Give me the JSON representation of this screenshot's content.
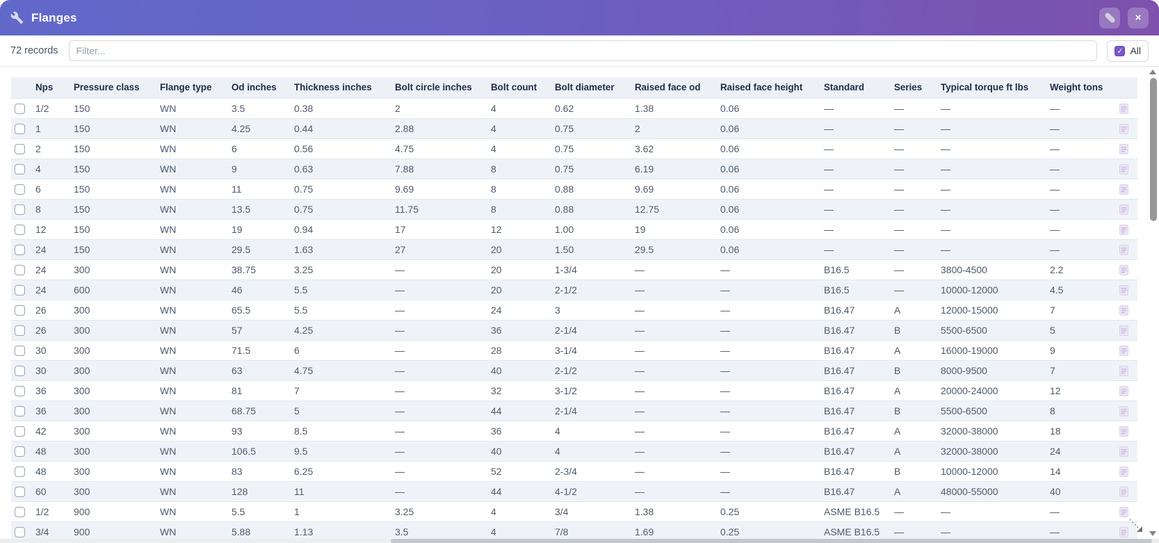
{
  "window": {
    "title": "Flanges",
    "icon": "wrench-icon",
    "edit_button": "pencil",
    "close_button": "×"
  },
  "toolbar": {
    "records_count": "72 records",
    "filter_placeholder": "Filter...",
    "select_all": {
      "label": "All",
      "checked": true
    }
  },
  "table": {
    "columns": [
      "Nps",
      "Pressure class",
      "Flange type",
      "Od inches",
      "Thickness inches",
      "Bolt circle inches",
      "Bolt count",
      "Bolt diameter",
      "Raised face od",
      "Raised face height",
      "Standard",
      "Series",
      "Typical torque ft lbs",
      "Weight tons"
    ],
    "rows": [
      [
        "1/2",
        "150",
        "WN",
        "3.5",
        "0.38",
        "2",
        "4",
        "0.62",
        "1.38",
        "0.06",
        "—",
        "—",
        "—",
        "—"
      ],
      [
        "1",
        "150",
        "WN",
        "4.25",
        "0.44",
        "2.88",
        "4",
        "0.75",
        "2",
        "0.06",
        "—",
        "—",
        "—",
        "—"
      ],
      [
        "2",
        "150",
        "WN",
        "6",
        "0.56",
        "4.75",
        "4",
        "0.75",
        "3.62",
        "0.06",
        "—",
        "—",
        "—",
        "—"
      ],
      [
        "4",
        "150",
        "WN",
        "9",
        "0.63",
        "7.88",
        "8",
        "0.75",
        "6.19",
        "0.06",
        "—",
        "—",
        "—",
        "—"
      ],
      [
        "6",
        "150",
        "WN",
        "11",
        "0.75",
        "9.69",
        "8",
        "0.88",
        "9.69",
        "0.06",
        "—",
        "—",
        "—",
        "—"
      ],
      [
        "8",
        "150",
        "WN",
        "13.5",
        "0.75",
        "11.75",
        "8",
        "0.88",
        "12.75",
        "0.06",
        "—",
        "—",
        "—",
        "—"
      ],
      [
        "12",
        "150",
        "WN",
        "19",
        "0.94",
        "17",
        "12",
        "1.00",
        "19",
        "0.06",
        "—",
        "—",
        "—",
        "—"
      ],
      [
        "24",
        "150",
        "WN",
        "29.5",
        "1.63",
        "27",
        "20",
        "1.50",
        "29.5",
        "0.06",
        "—",
        "—",
        "—",
        "—"
      ],
      [
        "24",
        "300",
        "WN",
        "38.75",
        "3.25",
        "—",
        "20",
        "1-3/4",
        "—",
        "—",
        "B16.5",
        "—",
        "3800-4500",
        "2.2"
      ],
      [
        "24",
        "600",
        "WN",
        "46",
        "5.5",
        "—",
        "20",
        "2-1/2",
        "—",
        "—",
        "B16.5",
        "—",
        "10000-12000",
        "4.5"
      ],
      [
        "26",
        "300",
        "WN",
        "65.5",
        "5.5",
        "—",
        "24",
        "3",
        "—",
        "—",
        "B16.47",
        "A",
        "12000-15000",
        "7"
      ],
      [
        "26",
        "300",
        "WN",
        "57",
        "4.25",
        "—",
        "36",
        "2-1/4",
        "—",
        "—",
        "B16.47",
        "B",
        "5500-6500",
        "5"
      ],
      [
        "30",
        "300",
        "WN",
        "71.5",
        "6",
        "—",
        "28",
        "3-1/4",
        "—",
        "—",
        "B16.47",
        "A",
        "16000-19000",
        "9"
      ],
      [
        "30",
        "300",
        "WN",
        "63",
        "4.75",
        "—",
        "40",
        "2-1/2",
        "—",
        "—",
        "B16.47",
        "B",
        "8000-9500",
        "7"
      ],
      [
        "36",
        "300",
        "WN",
        "81",
        "7",
        "—",
        "32",
        "3-1/2",
        "—",
        "—",
        "B16.47",
        "A",
        "20000-24000",
        "12"
      ],
      [
        "36",
        "300",
        "WN",
        "68.75",
        "5",
        "—",
        "44",
        "2-1/4",
        "—",
        "—",
        "B16.47",
        "B",
        "5500-6500",
        "8"
      ],
      [
        "42",
        "300",
        "WN",
        "93",
        "8.5",
        "—",
        "36",
        "4",
        "—",
        "—",
        "B16.47",
        "A",
        "32000-38000",
        "18"
      ],
      [
        "48",
        "300",
        "WN",
        "106.5",
        "9.5",
        "—",
        "40",
        "4",
        "—",
        "—",
        "B16.47",
        "A",
        "32000-38000",
        "24"
      ],
      [
        "48",
        "300",
        "WN",
        "83",
        "6.25",
        "—",
        "52",
        "2-3/4",
        "—",
        "—",
        "B16.47",
        "B",
        "10000-12000",
        "14"
      ],
      [
        "60",
        "300",
        "WN",
        "128",
        "11",
        "—",
        "44",
        "4-1/2",
        "—",
        "—",
        "B16.47",
        "A",
        "48000-55000",
        "40"
      ],
      [
        "1/2",
        "900",
        "WN",
        "5.5",
        "1",
        "3.25",
        "4",
        "3/4",
        "1.38",
        "0.25",
        "ASME B16.5",
        "—",
        "—",
        "—"
      ],
      [
        "3/4",
        "900",
        "WN",
        "5.88",
        "1.13",
        "3.5",
        "4",
        "7/8",
        "1.69",
        "0.25",
        "ASME B16.5",
        "—",
        "—",
        "—"
      ]
    ],
    "row_checkboxes_checked": false,
    "row_icon": "document-icon"
  },
  "colors": {
    "titlebar_gradient_left": "#6169ca",
    "titlebar_gradient_right": "#7e51ad",
    "accent_purple": "#7a57cb",
    "header_row_bg": "#edf0f5",
    "header_text": "#1f2c44",
    "row_alt_bg": "#eff3f8",
    "cell_text": "#4d5a6b"
  }
}
